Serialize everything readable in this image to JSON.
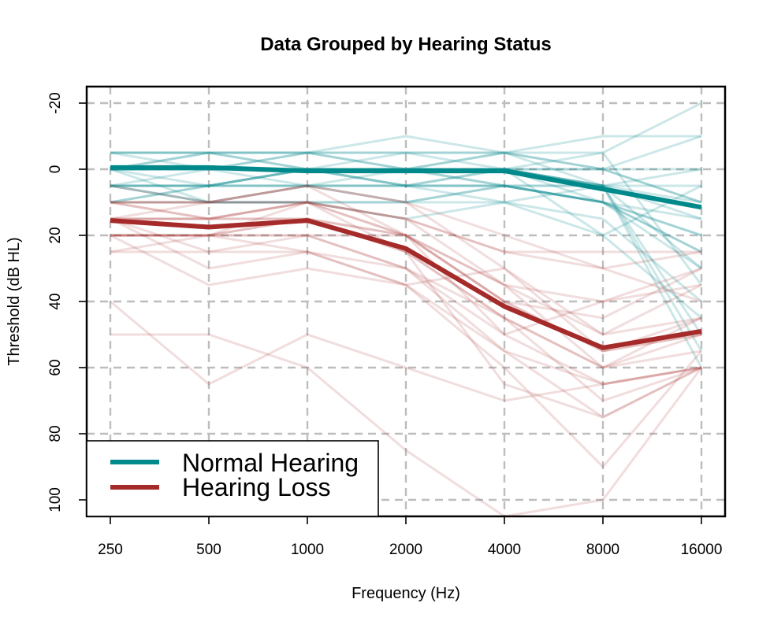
{
  "chart_data": {
    "type": "line",
    "title": "Data Grouped by Hearing Status",
    "xlabel": "Frequency (Hz)",
    "ylabel": "Threshold (dB HL)",
    "x_categories": [
      "250",
      "500",
      "1000",
      "2000",
      "4000",
      "8000",
      "16000"
    ],
    "y_ticks": [
      "-20",
      "0",
      "20",
      "40",
      "60",
      "80",
      "100"
    ],
    "y_tick_values": [
      -20,
      0,
      20,
      40,
      60,
      80,
      100
    ],
    "ylim": [
      -25,
      105
    ],
    "y_inverted": true,
    "grid": true,
    "legend_position": "bottom-left",
    "colors": {
      "normal": "#00898a",
      "loss": "#a52a2a"
    },
    "series": [
      {
        "name": "Normal Hearing",
        "color": "#00898a",
        "values": [
          -0.5,
          -0.5,
          0.5,
          0.5,
          0.5,
          6,
          11.5
        ]
      },
      {
        "name": "Hearing Loss",
        "color": "#a52a2a",
        "values": [
          15.5,
          17.5,
          15.5,
          24,
          41.5,
          54,
          49
        ]
      }
    ],
    "individual_normal": [
      [
        0,
        0,
        0,
        0,
        0,
        5,
        10
      ],
      [
        -5,
        -5,
        -5,
        -10,
        -5,
        -5,
        -20
      ],
      [
        5,
        5,
        0,
        5,
        0,
        10,
        25
      ],
      [
        0,
        -5,
        0,
        -5,
        -5,
        0,
        10
      ],
      [
        5,
        5,
        5,
        5,
        5,
        10,
        20
      ],
      [
        -5,
        0,
        -5,
        0,
        -5,
        5,
        0
      ],
      [
        10,
        5,
        0,
        0,
        5,
        10,
        15
      ],
      [
        0,
        10,
        5,
        5,
        0,
        5,
        5
      ],
      [
        -5,
        -5,
        0,
        0,
        5,
        10,
        30
      ],
      [
        0,
        0,
        0,
        5,
        10,
        20,
        45
      ],
      [
        5,
        10,
        10,
        10,
        5,
        5,
        60
      ],
      [
        0,
        0,
        -5,
        -5,
        -5,
        -10,
        -10
      ],
      [
        10,
        10,
        10,
        10,
        5,
        10,
        25
      ],
      [
        0,
        5,
        0,
        0,
        0,
        0,
        10
      ],
      [
        -5,
        -5,
        -5,
        0,
        0,
        5,
        15
      ],
      [
        5,
        0,
        0,
        5,
        5,
        10,
        20
      ],
      [
        0,
        0,
        0,
        0,
        0,
        -5,
        35
      ],
      [
        5,
        5,
        5,
        0,
        0,
        0,
        -10
      ],
      [
        0,
        -5,
        -5,
        -5,
        0,
        5,
        55
      ],
      [
        10,
        5,
        5,
        10,
        10,
        15,
        40
      ],
      [
        0,
        0,
        0,
        0,
        -5,
        0,
        0
      ],
      [
        5,
        5,
        0,
        0,
        0,
        20,
        5
      ],
      [
        0,
        0,
        5,
        5,
        5,
        5,
        30
      ],
      [
        5,
        10,
        10,
        15,
        10,
        5,
        50
      ]
    ],
    "individual_loss": [
      [
        15,
        15,
        15,
        20,
        40,
        55,
        50
      ],
      [
        20,
        20,
        15,
        25,
        45,
        60,
        55
      ],
      [
        10,
        10,
        10,
        20,
        35,
        50,
        45
      ],
      [
        25,
        25,
        20,
        30,
        50,
        65,
        60
      ],
      [
        15,
        30,
        25,
        35,
        55,
        65,
        60
      ],
      [
        20,
        20,
        10,
        15,
        25,
        30,
        25
      ],
      [
        10,
        15,
        10,
        20,
        40,
        45,
        30
      ],
      [
        20,
        35,
        30,
        35,
        60,
        90,
        55
      ],
      [
        50,
        50,
        60,
        85,
        105,
        100,
        60
      ],
      [
        40,
        65,
        50,
        60,
        70,
        65,
        60
      ],
      [
        15,
        25,
        25,
        30,
        45,
        60,
        45
      ],
      [
        10,
        10,
        5,
        10,
        30,
        55,
        50
      ],
      [
        20,
        20,
        15,
        25,
        45,
        70,
        60
      ],
      [
        15,
        10,
        5,
        20,
        50,
        40,
        30
      ],
      [
        25,
        20,
        25,
        35,
        30,
        50,
        35
      ],
      [
        10,
        10,
        10,
        15,
        25,
        25,
        25
      ],
      [
        15,
        15,
        10,
        15,
        35,
        60,
        50
      ],
      [
        20,
        20,
        20,
        30,
        55,
        75,
        60
      ],
      [
        5,
        10,
        5,
        10,
        20,
        30,
        40
      ],
      [
        15,
        15,
        10,
        25,
        65,
        75,
        60
      ],
      [
        10,
        15,
        15,
        20,
        40,
        55,
        45
      ],
      [
        20,
        20,
        20,
        20,
        35,
        40,
        35
      ]
    ]
  }
}
